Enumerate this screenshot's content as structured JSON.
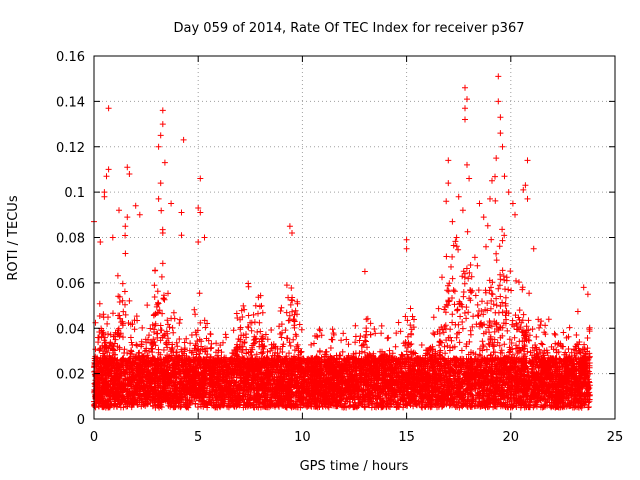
{
  "chart_data": {
    "type": "scatter",
    "title": "Day 059 of 2014, Rate Of TEC Index for receiver p367",
    "xlabel": "GPS time / hours",
    "ylabel": "ROTI / TECUs",
    "xlim": [
      0,
      25
    ],
    "ylim": [
      0,
      0.16
    ],
    "xticks": [
      "0",
      "5",
      "10",
      "15",
      "20",
      "25"
    ],
    "yticks": [
      "0",
      "0.02",
      "0.04",
      "0.06",
      "0.08",
      "0.1",
      "0.12",
      "0.14",
      "0.16"
    ],
    "grid": true,
    "marker": "plus",
    "color": "#ff0000",
    "envelope": [
      [
        0.0,
        0.045
      ],
      [
        0.3,
        0.06
      ],
      [
        0.6,
        0.05
      ],
      [
        1.0,
        0.055
      ],
      [
        1.4,
        0.09
      ],
      [
        1.8,
        0.05
      ],
      [
        2.2,
        0.045
      ],
      [
        2.6,
        0.055
      ],
      [
        3.0,
        0.07
      ],
      [
        3.3,
        0.1
      ],
      [
        3.6,
        0.05
      ],
      [
        4.0,
        0.05
      ],
      [
        4.5,
        0.04
      ],
      [
        5.0,
        0.06
      ],
      [
        5.5,
        0.04
      ],
      [
        6.0,
        0.035
      ],
      [
        6.5,
        0.04
      ],
      [
        7.0,
        0.05
      ],
      [
        7.6,
        0.065
      ],
      [
        8.2,
        0.05
      ],
      [
        8.8,
        0.045
      ],
      [
        9.4,
        0.075
      ],
      [
        10.0,
        0.04
      ],
      [
        10.5,
        0.038
      ],
      [
        11.0,
        0.045
      ],
      [
        11.5,
        0.04
      ],
      [
        12.0,
        0.04
      ],
      [
        12.5,
        0.045
      ],
      [
        13.0,
        0.05
      ],
      [
        13.5,
        0.04
      ],
      [
        14.0,
        0.045
      ],
      [
        14.5,
        0.04
      ],
      [
        15.0,
        0.055
      ],
      [
        15.5,
        0.04
      ],
      [
        16.0,
        0.045
      ],
      [
        16.5,
        0.05
      ],
      [
        17.0,
        0.085
      ],
      [
        17.5,
        0.08
      ],
      [
        18.0,
        0.11
      ],
      [
        18.5,
        0.07
      ],
      [
        19.0,
        0.09
      ],
      [
        19.4,
        0.12
      ],
      [
        19.8,
        0.075
      ],
      [
        20.3,
        0.06
      ],
      [
        20.8,
        0.065
      ],
      [
        21.3,
        0.05
      ],
      [
        21.8,
        0.045
      ],
      [
        22.3,
        0.05
      ],
      [
        22.8,
        0.04
      ],
      [
        23.3,
        0.05
      ],
      [
        23.8,
        0.045
      ]
    ],
    "outliers": [
      [
        0.0,
        0.087
      ],
      [
        0.3,
        0.078
      ],
      [
        0.5,
        0.1
      ],
      [
        0.6,
        0.107
      ],
      [
        0.7,
        0.11
      ],
      [
        0.7,
        0.137
      ],
      [
        0.5,
        0.098
      ],
      [
        0.9,
        0.08
      ],
      [
        1.2,
        0.092
      ],
      [
        1.5,
        0.085
      ],
      [
        1.6,
        0.089
      ],
      [
        1.6,
        0.111
      ],
      [
        1.7,
        0.108
      ],
      [
        2.0,
        0.094
      ],
      [
        2.2,
        0.09
      ],
      [
        3.1,
        0.12
      ],
      [
        3.2,
        0.125
      ],
      [
        3.3,
        0.13
      ],
      [
        3.3,
        0.136
      ],
      [
        3.4,
        0.113
      ],
      [
        3.2,
        0.104
      ],
      [
        3.1,
        0.097
      ],
      [
        3.3,
        0.082
      ],
      [
        3.7,
        0.095
      ],
      [
        4.2,
        0.091
      ],
      [
        4.2,
        0.081
      ],
      [
        4.3,
        0.123
      ],
      [
        5.1,
        0.106
      ],
      [
        5.0,
        0.093
      ],
      [
        5.1,
        0.091
      ],
      [
        5.3,
        0.08
      ],
      [
        5.0,
        0.078
      ],
      [
        9.4,
        0.085
      ],
      [
        9.5,
        0.082
      ],
      [
        13.0,
        0.065
      ],
      [
        15.0,
        0.079
      ],
      [
        15.0,
        0.075
      ],
      [
        17.0,
        0.114
      ],
      [
        17.0,
        0.104
      ],
      [
        16.9,
        0.096
      ],
      [
        17.2,
        0.087
      ],
      [
        17.4,
        0.08
      ],
      [
        17.5,
        0.098
      ],
      [
        17.7,
        0.092
      ],
      [
        17.8,
        0.137
      ],
      [
        17.8,
        0.132
      ],
      [
        17.9,
        0.141
      ],
      [
        17.8,
        0.146
      ],
      [
        17.9,
        0.112
      ],
      [
        18.0,
        0.106
      ],
      [
        18.5,
        0.095
      ],
      [
        18.7,
        0.089
      ],
      [
        19.0,
        0.097
      ],
      [
        19.1,
        0.105
      ],
      [
        19.3,
        0.115
      ],
      [
        19.4,
        0.151
      ],
      [
        19.4,
        0.14
      ],
      [
        19.5,
        0.133
      ],
      [
        19.5,
        0.126
      ],
      [
        19.6,
        0.12
      ],
      [
        19.7,
        0.107
      ],
      [
        19.9,
        0.1
      ],
      [
        20.1,
        0.095
      ],
      [
        20.2,
        0.09
      ],
      [
        20.8,
        0.114
      ],
      [
        20.7,
        0.103
      ],
      [
        20.6,
        0.101
      ],
      [
        20.8,
        0.097
      ],
      [
        21.1,
        0.075
      ],
      [
        23.5,
        0.058
      ],
      [
        23.7,
        0.055
      ]
    ],
    "density_points": 9000
  }
}
